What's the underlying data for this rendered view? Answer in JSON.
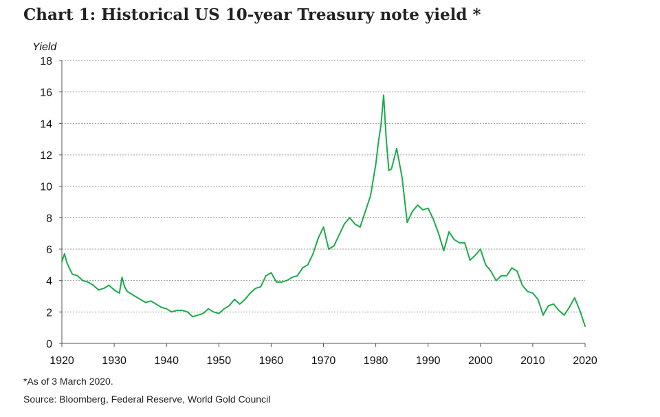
{
  "title": "Chart 1: Historical US 10-year Treasury note yield *",
  "footnote": "*As of 3 March 2020.",
  "source": "Source: Bloomberg, Federal Reserve, World Gold Council",
  "colors": {
    "line": "#1aab4b",
    "grid": "#9a9a9a",
    "axis": "#555555",
    "text": "#111111"
  },
  "chart_data": {
    "type": "line",
    "title": "Chart 1: Historical US 10-year Treasury note yield *",
    "xlabel": "",
    "ylabel": "Yield",
    "xlim": [
      1920,
      2020
    ],
    "ylim": [
      0,
      18
    ],
    "yticks": [
      0,
      2,
      4,
      6,
      8,
      10,
      12,
      14,
      16,
      18
    ],
    "xticks": [
      1920,
      1930,
      1940,
      1950,
      1960,
      1970,
      1980,
      1990,
      2000,
      2010,
      2020
    ],
    "grid": "horizontal dashed",
    "legend": "none",
    "series": [
      {
        "x": [
          1920,
          1920.5,
          1921,
          1922,
          1923,
          1924,
          1925,
          1926,
          1927,
          1928,
          1929,
          1930,
          1931,
          1931.5,
          1932,
          1932.5,
          1933,
          1934,
          1935,
          1936,
          1937,
          1938,
          1939,
          1940,
          1941,
          1942,
          1943,
          1944,
          1945,
          1946,
          1947,
          1948,
          1949,
          1950,
          1951,
          1952,
          1953,
          1954,
          1955,
          1956,
          1957,
          1958,
          1959,
          1960,
          1961,
          1962,
          1963,
          1964,
          1965,
          1966,
          1967,
          1968,
          1969,
          1970,
          1971,
          1972,
          1973,
          1974,
          1975,
          1976,
          1977,
          1978,
          1979,
          1980,
          1980.5,
          1981,
          1981.5,
          1982,
          1982.5,
          1983,
          1984,
          1985,
          1986,
          1987,
          1988,
          1989,
          1990,
          1991,
          1992,
          1993,
          1994,
          1995,
          1996,
          1997,
          1998,
          1999,
          2000,
          2001,
          2002,
          2003,
          2004,
          2005,
          2006,
          2007,
          2008,
          2009,
          2010,
          2011,
          2012,
          2013,
          2014,
          2015,
          2016,
          2017,
          2018,
          2019,
          2020
        ],
        "values": [
          5.2,
          5.7,
          5.1,
          4.4,
          4.3,
          4.0,
          3.9,
          3.7,
          3.4,
          3.5,
          3.7,
          3.4,
          3.2,
          4.2,
          3.6,
          3.3,
          3.2,
          3.0,
          2.8,
          2.6,
          2.7,
          2.5,
          2.3,
          2.2,
          2.0,
          2.1,
          2.1,
          2.0,
          1.7,
          1.8,
          1.9,
          2.2,
          2.0,
          1.9,
          2.2,
          2.4,
          2.8,
          2.5,
          2.8,
          3.2,
          3.5,
          3.6,
          4.3,
          4.5,
          3.9,
          3.9,
          4.0,
          4.2,
          4.3,
          4.8,
          5.0,
          5.7,
          6.7,
          7.4,
          6.0,
          6.2,
          6.9,
          7.6,
          8.0,
          7.6,
          7.4,
          8.4,
          9.4,
          11.4,
          12.8,
          13.9,
          15.8,
          13.0,
          11.0,
          11.1,
          12.4,
          10.6,
          7.7,
          8.4,
          8.8,
          8.5,
          8.6,
          7.9,
          7.0,
          5.9,
          7.1,
          6.6,
          6.4,
          6.4,
          5.3,
          5.6,
          6.0,
          5.0,
          4.6,
          4.0,
          4.3,
          4.3,
          4.8,
          4.6,
          3.7,
          3.3,
          3.2,
          2.8,
          1.8,
          2.4,
          2.5,
          2.1,
          1.8,
          2.3,
          2.9,
          2.1,
          1.1
        ]
      }
    ]
  }
}
